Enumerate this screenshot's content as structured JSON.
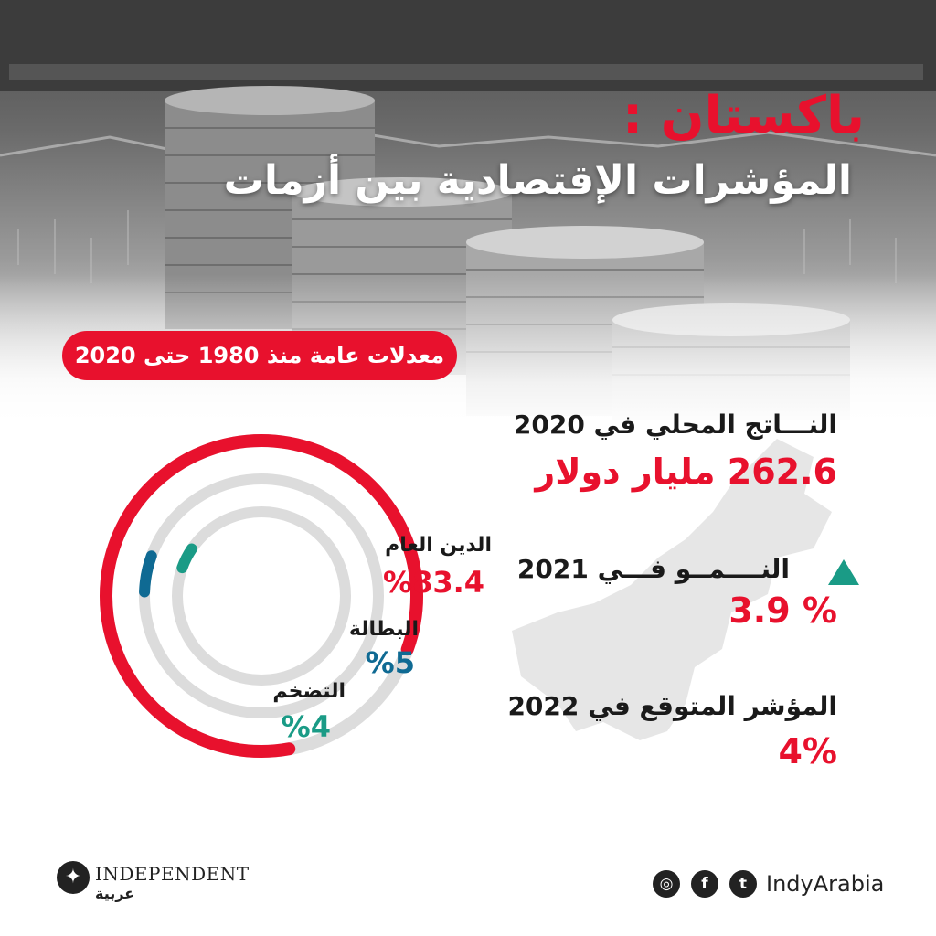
{
  "title": {
    "country": "باكستان :",
    "subtitle": "المؤشرات الإقتصادية بين أزمات"
  },
  "averages_pill": "معدلات عامة منذ 1980 حتى 2020",
  "stats": {
    "gdp_label": "النـــاتج المحلي في 2020",
    "gdp_value": "262.6 مليار دولار",
    "growth_label": "النــــمــو فـــي 2021",
    "growth_value": "% 3.9",
    "outlook_label": "المؤشر المتوقع في 2022",
    "outlook_value": "4%"
  },
  "rings": {
    "debt_label": "الدين العام",
    "debt_value": "%83.4",
    "debt_fraction": 0.834,
    "unemployment_label": "البطالة",
    "unemployment_value": "%5",
    "unemployment_fraction": 0.05,
    "inflation_label": "التضخم",
    "inflation_value": "%4",
    "inflation_fraction": 0.04
  },
  "colors": {
    "accent": "#e8112d",
    "unemployment": "#0f6a93",
    "inflation": "#1a9b86",
    "track": "#dcdcdc"
  },
  "footer": {
    "brand": "INDEPENDENT",
    "brand_sub": "عربية",
    "handle": "IndyArabia",
    "icons": [
      "instagram-icon",
      "facebook-icon",
      "twitter-icon"
    ]
  }
}
